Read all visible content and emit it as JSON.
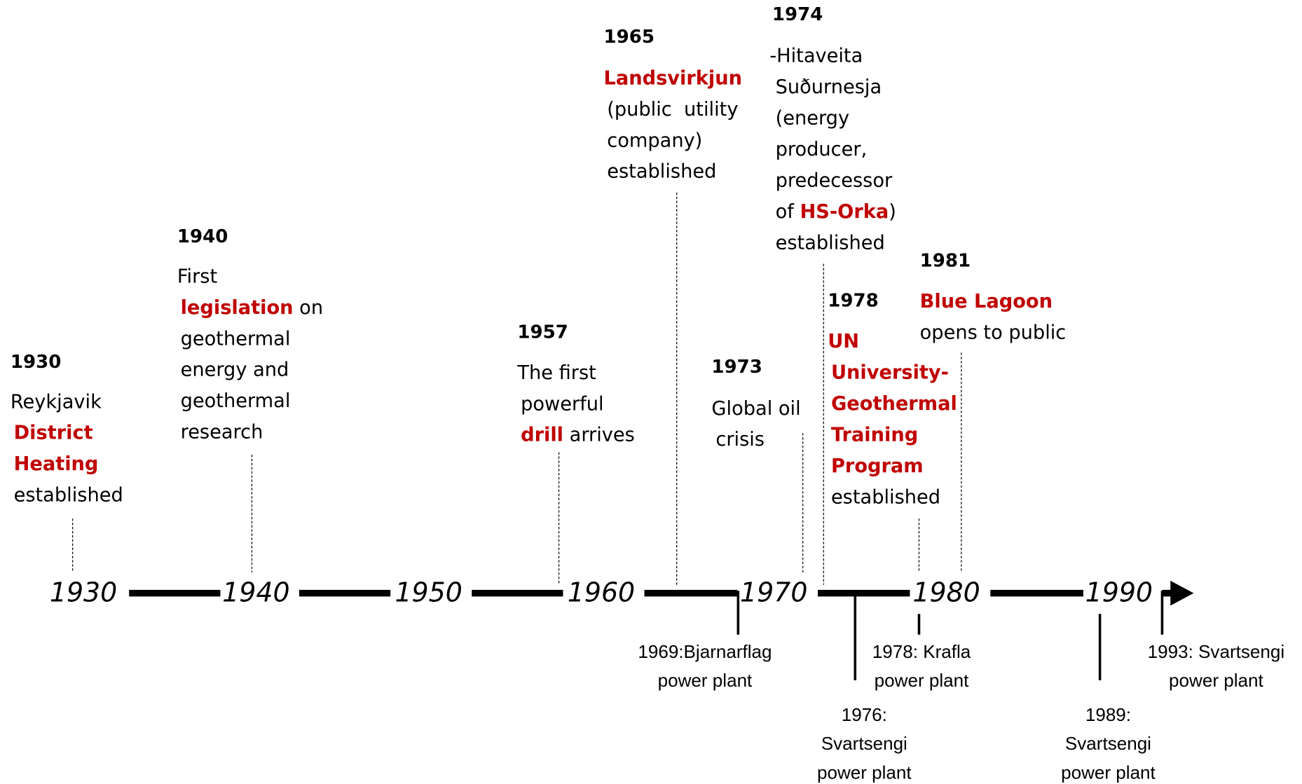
{
  "axis": {
    "labels": [
      "1930",
      "1940",
      "1950",
      "1960",
      "1970",
      "1980",
      "1990"
    ]
  },
  "events_above": [
    {
      "year": "1930",
      "lines": [
        [
          {
            "text": "Reykjavik"
          }
        ],
        [
          {
            "text": "District",
            "emphasis": true
          }
        ],
        [
          {
            "text": "Heating",
            "emphasis": true
          }
        ],
        [
          {
            "text": "established"
          }
        ]
      ]
    },
    {
      "year": "1940",
      "lines": [
        [
          {
            "text": "First"
          }
        ],
        [
          {
            "text": "legislation",
            "emphasis": true
          },
          {
            "text": " on"
          }
        ],
        [
          {
            "text": "geothermal"
          }
        ],
        [
          {
            "text": "energy and"
          }
        ],
        [
          {
            "text": "geothermal"
          }
        ],
        [
          {
            "text": "research"
          }
        ]
      ]
    },
    {
      "year": "1957",
      "lines": [
        [
          {
            "text": "The first"
          }
        ],
        [
          {
            "text": "powerful"
          }
        ],
        [
          {
            "text": "drill",
            "emphasis": true
          },
          {
            "text": " arrives"
          }
        ]
      ]
    },
    {
      "year": "1965",
      "lines": [
        [
          {
            "text": "Landsvirkjun",
            "emphasis": true
          }
        ],
        [
          {
            "text": "(public  utility"
          }
        ],
        [
          {
            "text": "company)"
          }
        ],
        [
          {
            "text": "established"
          }
        ]
      ]
    },
    {
      "year": "1973",
      "lines": [
        [
          {
            "text": "Global oil"
          }
        ],
        [
          {
            "text": "crisis"
          }
        ]
      ]
    },
    {
      "year": "1974",
      "lines": [
        [
          {
            "text": "-Hitaveita"
          }
        ],
        [
          {
            "text": "Suðurnesja"
          }
        ],
        [
          {
            "text": "(energy"
          }
        ],
        [
          {
            "text": "producer,"
          }
        ],
        [
          {
            "text": "predecessor"
          }
        ],
        [
          {
            "text": "of "
          },
          {
            "text": "HS-Orka",
            "emphasis": true
          },
          {
            "text": ")"
          }
        ],
        [
          {
            "text": "established"
          }
        ]
      ]
    },
    {
      "year": "1978",
      "lines": [
        [
          {
            "text": "UN",
            "emphasis": true
          }
        ],
        [
          {
            "text": "University-",
            "emphasis": true
          }
        ],
        [
          {
            "text": "Geothermal",
            "emphasis": true
          }
        ],
        [
          {
            "text": "Training",
            "emphasis": true
          }
        ],
        [
          {
            "text": "Program",
            "emphasis": true
          }
        ],
        [
          {
            "text": "established"
          }
        ]
      ]
    },
    {
      "year": "1981",
      "lines": [
        [
          {
            "text": "Blue Lagoon",
            "emphasis": true
          }
        ],
        [
          {
            "text": "opens to public"
          }
        ]
      ]
    }
  ],
  "events_below": [
    {
      "lines": [
        "1969:Bjarnarflag",
        "power plant"
      ]
    },
    {
      "lines": [
        "1976:",
        "Svartsengi",
        "power plant"
      ]
    },
    {
      "lines": [
        "1978: Krafla",
        "power plant"
      ]
    },
    {
      "lines": [
        "1989:",
        "Svartsengi",
        "power plant"
      ]
    },
    {
      "lines": [
        "1993: Svartsengi",
        "power plant"
      ]
    }
  ]
}
